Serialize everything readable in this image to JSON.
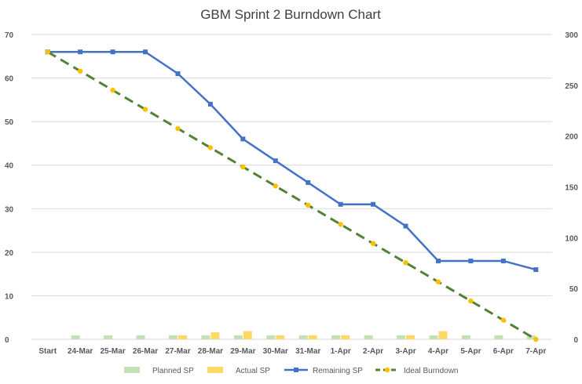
{
  "chart_data": {
    "type": "bar",
    "title": "GBM Sprint 2 Burndown Chart",
    "categories": [
      "Start",
      "24-Mar",
      "25-Mar",
      "26-Mar",
      "27-Mar",
      "28-Mar",
      "29-Mar",
      "30-Mar",
      "31-Mar",
      "1-Apr",
      "2-Apr",
      "3-Apr",
      "4-Apr",
      "5-Apr",
      "6-Apr",
      "7-Apr"
    ],
    "y_left": {
      "ylim": [
        0,
        70
      ],
      "ticks": [
        0,
        10,
        20,
        30,
        40,
        50,
        60,
        70
      ]
    },
    "y_right": {
      "ylim": [
        0,
        300
      ],
      "ticks": [
        0,
        50,
        100,
        150,
        200,
        250,
        300
      ]
    },
    "series": [
      {
        "name": "Planned SP",
        "kind": "bar",
        "axis": "right",
        "color": "#c5e0b4",
        "values": [
          0,
          4,
          4,
          4,
          4,
          4,
          4,
          4,
          4,
          4,
          4,
          4,
          4,
          4,
          4,
          4
        ]
      },
      {
        "name": "Actual SP",
        "kind": "bar",
        "axis": "right",
        "color": "#ffd966",
        "values": [
          0,
          0,
          0,
          0,
          4,
          7,
          8,
          4,
          4,
          4,
          0,
          4,
          8,
          0,
          0,
          0
        ]
      },
      {
        "name": "Remaining SP",
        "kind": "line",
        "axis": "left",
        "color": "#4472c4",
        "marker": "square",
        "values": [
          66,
          66,
          66,
          66,
          61,
          54,
          46,
          41,
          36,
          31,
          31,
          26,
          18,
          18,
          18,
          16
        ]
      },
      {
        "name": "Ideal Burndown",
        "kind": "line-dashed",
        "axis": "left",
        "color": "#548235",
        "marker_color": "#ffc000",
        "marker": "circle",
        "values": [
          66,
          61.6,
          57.2,
          52.8,
          48.4,
          44,
          39.6,
          35.2,
          30.8,
          26.4,
          22,
          17.6,
          13.2,
          8.8,
          4.4,
          0
        ]
      }
    ],
    "legend": {
      "position": "bottom"
    },
    "grid": true
  }
}
